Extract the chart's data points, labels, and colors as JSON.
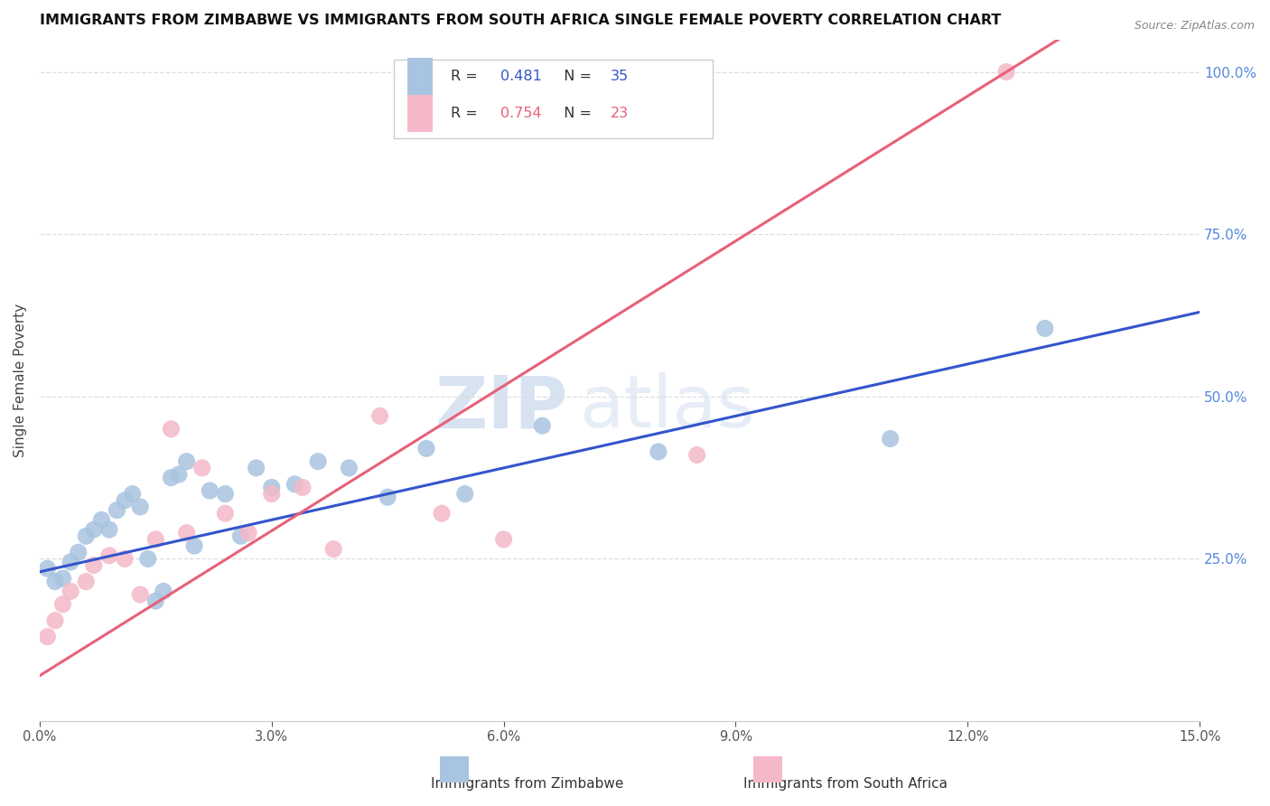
{
  "title": "IMMIGRANTS FROM ZIMBABWE VS IMMIGRANTS FROM SOUTH AFRICA SINGLE FEMALE POVERTY CORRELATION CHART",
  "source": "Source: ZipAtlas.com",
  "ylabel": "Single Female Poverty",
  "legend_label1": "Immigrants from Zimbabwe",
  "legend_label2": "Immigrants from South Africa",
  "R1": "0.481",
  "N1": "35",
  "R2": "0.754",
  "N2": "23",
  "color_zimbabwe": "#a8c4e0",
  "color_south_africa": "#f4b8c8",
  "line_color_zimbabwe": "#3355cc",
  "line_color_south_africa": "#e8607a",
  "xmin": 0.0,
  "xmax": 0.15,
  "ymin": 0.0,
  "ymax": 1.05,
  "x_ticks": [
    0.0,
    0.03,
    0.06,
    0.09,
    0.12,
    0.15
  ],
  "y_ticks_right": [
    0.25,
    0.5,
    0.75,
    1.0
  ],
  "zimbabwe_x": [
    0.001,
    0.002,
    0.003,
    0.004,
    0.005,
    0.006,
    0.007,
    0.008,
    0.009,
    0.01,
    0.011,
    0.012,
    0.013,
    0.014,
    0.015,
    0.016,
    0.017,
    0.018,
    0.019,
    0.02,
    0.022,
    0.024,
    0.026,
    0.028,
    0.03,
    0.033,
    0.036,
    0.04,
    0.045,
    0.05,
    0.055,
    0.065,
    0.08,
    0.11,
    0.13
  ],
  "zimbabwe_y": [
    0.235,
    0.215,
    0.22,
    0.245,
    0.26,
    0.285,
    0.295,
    0.31,
    0.295,
    0.325,
    0.34,
    0.35,
    0.33,
    0.25,
    0.185,
    0.2,
    0.375,
    0.38,
    0.4,
    0.27,
    0.355,
    0.35,
    0.285,
    0.39,
    0.36,
    0.365,
    0.4,
    0.39,
    0.345,
    0.42,
    0.35,
    0.455,
    0.415,
    0.435,
    0.605
  ],
  "south_africa_x": [
    0.001,
    0.002,
    0.003,
    0.004,
    0.006,
    0.007,
    0.009,
    0.011,
    0.013,
    0.015,
    0.017,
    0.019,
    0.021,
    0.024,
    0.027,
    0.03,
    0.034,
    0.038,
    0.044,
    0.052,
    0.06,
    0.085,
    0.125
  ],
  "south_africa_y": [
    0.13,
    0.155,
    0.18,
    0.2,
    0.215,
    0.24,
    0.255,
    0.25,
    0.195,
    0.28,
    0.45,
    0.29,
    0.39,
    0.32,
    0.29,
    0.35,
    0.36,
    0.265,
    0.47,
    0.32,
    0.28,
    0.41,
    1.0
  ]
}
